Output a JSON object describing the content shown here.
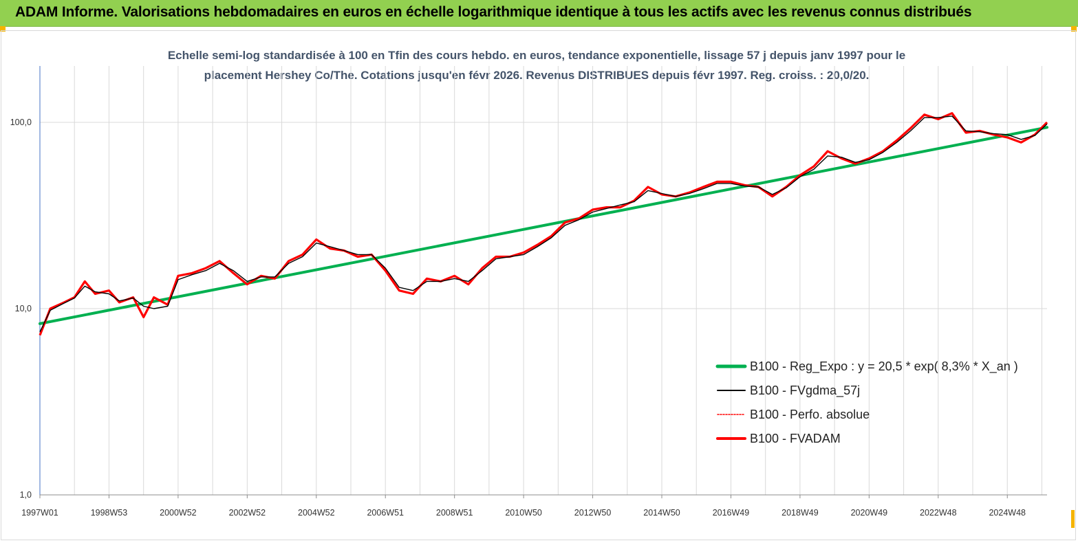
{
  "header": {
    "title": "ADAM Informe. Valorisations hebdomadaires en euros en échelle logarithmique identique à tous les actifs avec les revenus connus distribués"
  },
  "chart_data": {
    "type": "line",
    "title": "Echelle semi-log standardisée à 100 en Tfin des cours hebdo. en euros, tendance exponentielle, lissage 57 j depuis janv 1997 pour le placement Hershey Co/The. Cotations jusqu'en févr 2026. Revenus DISTRIBUES depuis févr 1997. Reg. croiss. : 20,0/20.",
    "title_lines": [
      "Echelle semi-log standardisée à 100 en Tfin des cours hebdo. en euros, tendance exponentielle, lissage 57 j depuis janv 1997 pour le",
      "placement Hershey Co/The. Cotations jusqu'en févr 2026. Revenus DISTRIBUES depuis févr 1997. Reg. croiss. : 20,0/20."
    ],
    "y_scale": "log",
    "ylim": [
      1,
      200
    ],
    "xlim": [
      1997.0,
      2026.15
    ],
    "y_ticks": [
      {
        "value": 1,
        "label": "1,0"
      },
      {
        "value": 10,
        "label": "10,0"
      },
      {
        "value": 100,
        "label": "100,0"
      }
    ],
    "x_ticks": [
      {
        "pos": 1997.0,
        "label": "1997W01"
      },
      {
        "pos": 1999.0,
        "label": "1998W53"
      },
      {
        "pos": 2001.0,
        "label": "2000W52"
      },
      {
        "pos": 2003.0,
        "label": "2002W52"
      },
      {
        "pos": 2005.0,
        "label": "2004W52"
      },
      {
        "pos": 2007.0,
        "label": "2006W51"
      },
      {
        "pos": 2009.0,
        "label": "2008W51"
      },
      {
        "pos": 2011.0,
        "label": "2010W50"
      },
      {
        "pos": 2013.0,
        "label": "2012W50"
      },
      {
        "pos": 2015.0,
        "label": "2014W50"
      },
      {
        "pos": 2017.0,
        "label": "2016W49"
      },
      {
        "pos": 2019.0,
        "label": "2018W49"
      },
      {
        "pos": 2021.0,
        "label": "2020W49"
      },
      {
        "pos": 2023.0,
        "label": "2022W48"
      },
      {
        "pos": 2025.0,
        "label": "2024W48"
      }
    ],
    "grid": "vertical",
    "legend_position": "bottom-right",
    "series": [
      {
        "name": "B100 - Reg_Expo : y = 20,5 * exp( 8,3% * X_an )",
        "color": "#00b050",
        "style": "solid-thick",
        "x": [
          1997.0,
          2026.15
        ],
        "y": [
          8.3,
          94
        ]
      },
      {
        "name": "B100 - FVgdma_57j",
        "color": "#000000",
        "style": "solid-thin",
        "x": [
          1997.0,
          1997.3,
          1997.7,
          1998.0,
          1998.3,
          1998.6,
          1999.0,
          1999.3,
          1999.7,
          2000.0,
          2000.3,
          2000.7,
          2001.0,
          2001.4,
          2001.8,
          2002.2,
          2002.6,
          2003.0,
          2003.4,
          2003.8,
          2004.2,
          2004.6,
          2005.0,
          2005.4,
          2005.8,
          2006.2,
          2006.6,
          2007.0,
          2007.4,
          2007.8,
          2008.2,
          2008.6,
          2009.0,
          2009.4,
          2009.8,
          2010.2,
          2010.6,
          2011.0,
          2011.4,
          2011.8,
          2012.2,
          2012.6,
          2013.0,
          2013.4,
          2013.8,
          2014.2,
          2014.6,
          2015.0,
          2015.4,
          2015.8,
          2016.2,
          2016.6,
          2017.0,
          2017.4,
          2017.8,
          2018.2,
          2018.6,
          2019.0,
          2019.4,
          2019.8,
          2020.2,
          2020.6,
          2021.0,
          2021.4,
          2021.8,
          2022.2,
          2022.6,
          2023.0,
          2023.4,
          2023.8,
          2024.2,
          2024.6,
          2025.0,
          2025.4,
          2025.8,
          2026.15
        ],
        "y": [
          7.5,
          9.8,
          10.7,
          11.4,
          13.2,
          12.3,
          12.0,
          11.0,
          11.4,
          10.3,
          10.0,
          10.3,
          14.3,
          15.2,
          16.0,
          17.5,
          16.0,
          14.0,
          14.8,
          14.8,
          17.5,
          19.0,
          22.5,
          21.5,
          20.5,
          19.5,
          19.5,
          16.5,
          13.0,
          12.5,
          14.0,
          14.0,
          14.5,
          14.0,
          16.0,
          18.5,
          19.0,
          19.5,
          21.5,
          24.0,
          28.0,
          30.0,
          33.0,
          34.5,
          36.0,
          37.5,
          43.0,
          41.5,
          40.0,
          41.5,
          44.0,
          47.0,
          47.0,
          45.5,
          45.0,
          41.0,
          44.5,
          51.0,
          56.0,
          66.0,
          65.0,
          61.0,
          63.0,
          69.0,
          78.0,
          90.0,
          106.0,
          106.0,
          108.0,
          90.0,
          89.0,
          87.0,
          86.0,
          81.0,
          85.0,
          98.0
        ]
      },
      {
        "name": "B100 - Perfo. absolue",
        "color": "#ff0000",
        "style": "dotted"
      },
      {
        "name": "B100 - FVADAM",
        "color": "#ff0000",
        "style": "solid-thick",
        "x": [
          1997.0,
          1997.3,
          1997.7,
          1998.0,
          1998.3,
          1998.6,
          1999.0,
          1999.3,
          1999.7,
          2000.0,
          2000.3,
          2000.7,
          2001.0,
          2001.4,
          2001.8,
          2002.2,
          2002.6,
          2003.0,
          2003.4,
          2003.8,
          2004.2,
          2004.6,
          2005.0,
          2005.4,
          2005.8,
          2006.2,
          2006.6,
          2007.0,
          2007.4,
          2007.8,
          2008.2,
          2008.6,
          2009.0,
          2009.4,
          2009.8,
          2010.2,
          2010.6,
          2011.0,
          2011.4,
          2011.8,
          2012.2,
          2012.6,
          2013.0,
          2013.4,
          2013.8,
          2014.2,
          2014.6,
          2015.0,
          2015.4,
          2015.8,
          2016.2,
          2016.6,
          2017.0,
          2017.4,
          2017.8,
          2018.2,
          2018.6,
          2019.0,
          2019.4,
          2019.8,
          2020.2,
          2020.6,
          2021.0,
          2021.4,
          2021.8,
          2022.2,
          2022.6,
          2023.0,
          2023.4,
          2023.8,
          2024.2,
          2024.6,
          2025.0,
          2025.4,
          2025.8,
          2026.15
        ],
        "y": [
          7.2,
          10.0,
          10.8,
          11.5,
          14.0,
          12.0,
          12.5,
          10.8,
          11.5,
          9.0,
          11.5,
          10.5,
          15.0,
          15.5,
          16.5,
          18.0,
          15.5,
          13.5,
          15.0,
          14.5,
          18.0,
          19.5,
          23.5,
          21.0,
          20.5,
          19.0,
          19.5,
          16.0,
          12.5,
          12.0,
          14.5,
          14.0,
          15.0,
          13.5,
          16.5,
          19.0,
          19.0,
          20.0,
          22.0,
          24.5,
          29.0,
          30.5,
          34.0,
          35.0,
          35.0,
          38.0,
          45.0,
          41.0,
          40.0,
          42.0,
          45.0,
          48.0,
          48.0,
          46.0,
          45.0,
          40.0,
          45.0,
          52.0,
          58.0,
          70.0,
          64.0,
          60.0,
          64.0,
          70.0,
          80.0,
          93.0,
          110.0,
          104.0,
          112.0,
          88.0,
          90.0,
          86.0,
          83.0,
          78.0,
          86.0,
          100.0
        ]
      }
    ]
  }
}
